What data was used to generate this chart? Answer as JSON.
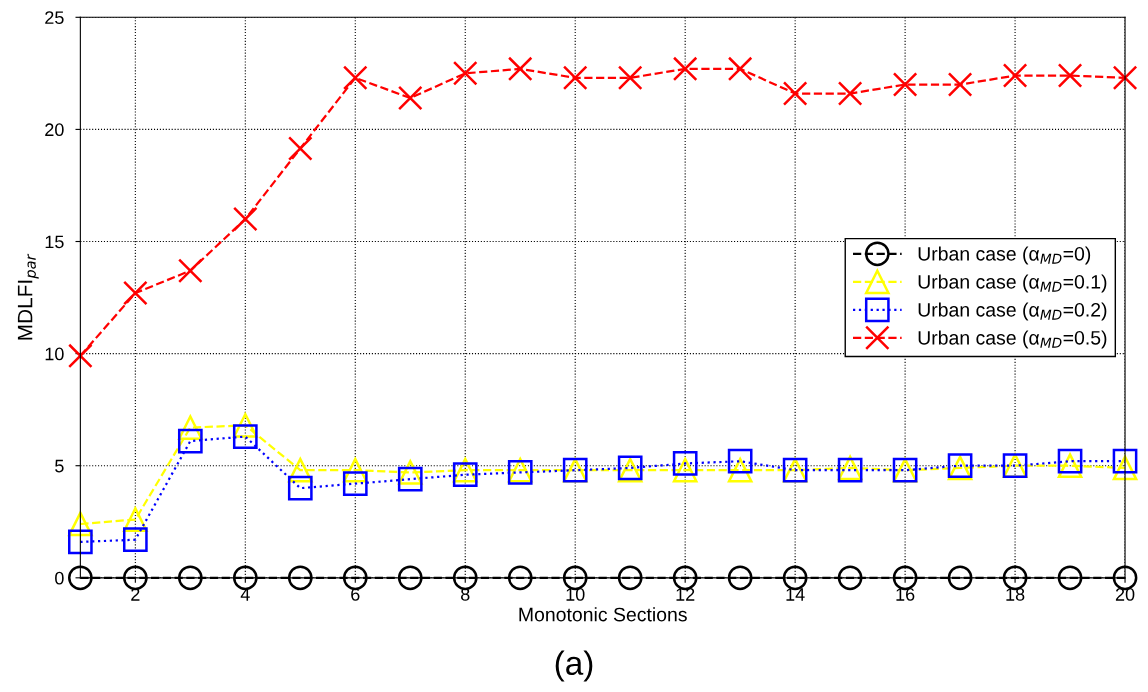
{
  "chart_data": {
    "type": "line",
    "xlabel": "Monotonic Sections",
    "ylabel": "MDLFI$_{par}$",
    "annotations": [
      "(a)"
    ],
    "x": [
      1,
      2,
      3,
      4,
      5,
      6,
      7,
      8,
      9,
      10,
      11,
      12,
      13,
      14,
      15,
      16,
      17,
      18,
      19,
      20
    ],
    "xlim": [
      1,
      20
    ],
    "xticks": [
      2,
      4,
      6,
      8,
      10,
      12,
      14,
      16,
      18,
      20
    ],
    "ylim": [
      0,
      25
    ],
    "yticks": [
      0,
      5,
      10,
      15,
      20,
      25
    ],
    "grid": true,
    "legend": "right",
    "series": [
      {
        "name": "Urban case (α$_{MD}$=0)",
        "color": "#000000",
        "marker": "circle",
        "line_style": "dashed",
        "values": [
          0,
          0,
          0,
          0,
          0,
          0,
          0,
          0,
          0,
          0,
          0,
          0,
          0,
          0,
          0,
          0,
          0,
          0,
          0,
          0
        ]
      },
      {
        "name": "Urban case (α$_{MD}$=0.1)",
        "color": "#ffff00",
        "marker": "triangle",
        "line_style": "dashed",
        "values": [
          2.4,
          2.6,
          6.7,
          6.8,
          4.8,
          4.8,
          4.7,
          4.8,
          4.8,
          4.8,
          4.8,
          4.8,
          4.8,
          4.8,
          4.9,
          4.8,
          4.9,
          5.0,
          5.0,
          4.9
        ]
      },
      {
        "name": "Urban case (α$_{MD}$=0.2)",
        "color": "#0000ff",
        "marker": "square",
        "line_style": "dotted",
        "values": [
          1.6,
          1.7,
          6.1,
          6.3,
          4.0,
          4.2,
          4.4,
          4.6,
          4.7,
          4.8,
          4.9,
          5.1,
          5.2,
          4.8,
          4.8,
          4.8,
          5.0,
          5.0,
          5.2,
          5.2
        ]
      },
      {
        "name": "Urban case (α$_{MD}$=0.5)",
        "color": "#ff0000",
        "marker": "cross",
        "line_style": "dashed",
        "values": [
          9.9,
          12.7,
          13.7,
          16.0,
          19.15,
          22.3,
          21.4,
          22.5,
          22.7,
          22.3,
          22.3,
          22.7,
          22.7,
          21.6,
          21.6,
          22.0,
          22.0,
          22.4,
          22.4,
          22.3
        ]
      }
    ]
  }
}
